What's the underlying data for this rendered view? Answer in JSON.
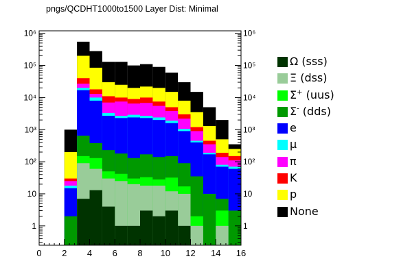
{
  "title": "pngs/QCDHT1000to1500 Layer Dist: Minimal",
  "chart_data": {
    "type": "bar",
    "stacked": true,
    "log_y": true,
    "grid": false,
    "legend_position": "right",
    "title": "pngs/QCDHT1000to1500 Layer Dist: Minimal",
    "xlabel": "",
    "ylabel": "",
    "xlim": [
      0,
      16
    ],
    "ylim": [
      0.25,
      1200000
    ],
    "x_ticks": [
      "0",
      "2",
      "4",
      "6",
      "8",
      "10",
      "12",
      "14",
      "16"
    ],
    "y_ticks": [
      {
        "value": 1,
        "label": "1"
      },
      {
        "value": 10,
        "label": "10"
      },
      {
        "value": 100,
        "label": "10²"
      },
      {
        "value": 1000,
        "label": "10³"
      },
      {
        "value": 10000,
        "label": "10⁴"
      },
      {
        "value": 100000,
        "label": "10⁵"
      },
      {
        "value": 1000000,
        "label": "10⁶"
      }
    ],
    "bin_edges": [
      0,
      1,
      2,
      3,
      4,
      5,
      6,
      7,
      8,
      9,
      10,
      11,
      12,
      13,
      14,
      15,
      16
    ],
    "series": [
      {
        "name": "Ω (sss)",
        "label_main": "Ω (sss)",
        "label_sup": "",
        "color": "#003300",
        "cumulative": [
          0,
          0,
          0,
          7,
          13,
          4,
          1,
          1,
          3,
          2,
          3,
          1,
          0,
          0,
          0,
          0
        ]
      },
      {
        "name": "Ξ (dss)",
        "label_main": "Ξ (dss)",
        "label_sup": "",
        "color": "#99cc99",
        "cumulative": [
          0,
          0,
          0,
          90,
          60,
          30,
          25,
          20,
          18,
          18,
          12,
          10,
          1,
          0,
          1,
          0
        ]
      },
      {
        "name": "Σ+ (uus)",
        "label_main": "Σ",
        "label_sup": "+",
        "label_rest": " (uus)",
        "color": "#00ff00",
        "cumulative": [
          0,
          0,
          0,
          150,
          130,
          50,
          42,
          30,
          33,
          28,
          32,
          17,
          2,
          0,
          3,
          0
        ]
      },
      {
        "name": "Σ- (dds)",
        "label_main": "Σ",
        "label_sup": "-",
        "label_rest": " (dds)",
        "color": "#009900",
        "cumulative": [
          0,
          0,
          2,
          650,
          380,
          230,
          180,
          130,
          170,
          140,
          150,
          90,
          35,
          10,
          7,
          3
        ]
      },
      {
        "name": "e",
        "label_main": "e",
        "label_sup": "",
        "color": "#0000ff",
        "cumulative": [
          0,
          0,
          15,
          17000,
          8000,
          2700,
          2300,
          2400,
          2300,
          2000,
          1600,
          900,
          400,
          170,
          70,
          60
        ]
      },
      {
        "name": "μ",
        "label_main": "μ",
        "label_sup": "",
        "color": "#00ffff",
        "cumulative": [
          0,
          0,
          18,
          20000,
          10000,
          3300,
          2700,
          2900,
          2700,
          2400,
          1900,
          1050,
          450,
          190,
          80,
          70
        ]
      },
      {
        "name": "π",
        "label_main": "π",
        "label_sup": "",
        "color": "#ff00ff",
        "cumulative": [
          0,
          0,
          25,
          27000,
          13000,
          7000,
          7500,
          6500,
          6800,
          5500,
          3800,
          2200,
          900,
          350,
          140,
          110
        ]
      },
      {
        "name": "K",
        "label_main": "K",
        "label_sup": "",
        "color": "#ff0000",
        "cumulative": [
          0,
          0,
          30,
          40000,
          18000,
          11000,
          10000,
          9000,
          10000,
          7500,
          5000,
          3000,
          1200,
          450,
          190,
          150
        ]
      },
      {
        "name": "p",
        "label_main": "p",
        "label_sup": "",
        "color": "#ffff00",
        "cumulative": [
          0,
          0,
          200,
          200000,
          85000,
          30000,
          25000,
          20000,
          22000,
          20000,
          15000,
          8000,
          3500,
          1300,
          500,
          250
        ]
      },
      {
        "name": "None",
        "label_main": "None",
        "label_sup": "",
        "color": "#000000",
        "cumulative": [
          0,
          0,
          1000,
          550000,
          280000,
          130000,
          130000,
          100000,
          110000,
          90000,
          60000,
          30000,
          15000,
          5000,
          2000,
          350
        ]
      }
    ]
  }
}
